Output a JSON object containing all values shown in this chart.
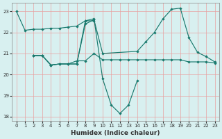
{
  "lines": [
    {
      "x": [
        0,
        1,
        2,
        3,
        4,
        5,
        6,
        7,
        8,
        9
      ],
      "y": [
        23.0,
        22.1,
        22.15,
        22.15,
        22.2,
        22.2,
        22.25,
        22.3,
        22.55,
        22.55
      ]
    },
    {
      "x": [
        2,
        3,
        4,
        5,
        6,
        7,
        8,
        9,
        10,
        11,
        12,
        13,
        14
      ],
      "y": [
        20.9,
        20.9,
        20.45,
        20.5,
        20.5,
        20.5,
        22.55,
        22.65,
        19.8,
        18.55,
        18.15,
        18.55,
        19.7
      ]
    },
    {
      "x": [
        2,
        3,
        4,
        5,
        6,
        7,
        8,
        9,
        10,
        11,
        12,
        13,
        14,
        15,
        16,
        17,
        18,
        19,
        20,
        21,
        22,
        23
      ],
      "y": [
        20.9,
        20.9,
        20.45,
        20.5,
        20.5,
        20.65,
        20.65,
        21.0,
        20.7,
        20.7,
        20.7,
        20.7,
        20.7,
        20.7,
        20.7,
        20.7,
        20.7,
        20.7,
        20.6,
        20.6,
        20.6,
        20.55
      ]
    },
    {
      "x": [
        2,
        3,
        4,
        5,
        6,
        7,
        8,
        9,
        10,
        14,
        15,
        16,
        17,
        18,
        19,
        20,
        21,
        22,
        23
      ],
      "y": [
        20.9,
        20.9,
        20.45,
        20.5,
        20.5,
        20.5,
        22.4,
        22.6,
        21.0,
        21.1,
        21.55,
        22.0,
        22.65,
        23.1,
        23.15,
        21.75,
        21.05,
        20.85,
        20.6
      ]
    }
  ],
  "color": "#1a7a6e",
  "bg_color": "#d8f0f0",
  "grid_color": "#e8a0a0",
  "xlabel": "Humidex (Indice chaleur)",
  "xlim": [
    -0.5,
    23.5
  ],
  "ylim": [
    17.8,
    23.4
  ],
  "yticks": [
    18,
    19,
    20,
    21,
    22,
    23
  ],
  "xticks": [
    0,
    1,
    2,
    3,
    4,
    5,
    6,
    7,
    8,
    9,
    10,
    11,
    12,
    13,
    14,
    15,
    16,
    17,
    18,
    19,
    20,
    21,
    22,
    23
  ]
}
